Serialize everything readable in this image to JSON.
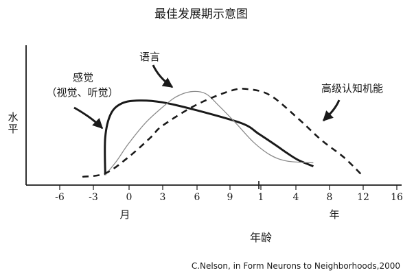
{
  "chart_data": {
    "type": "line",
    "title": "最佳发展期示意图",
    "ylabel": "水平",
    "xlabel": "年龄",
    "x_unit_months": "月",
    "x_unit_years": "年",
    "ticks_months": [
      "-6",
      "-3",
      "0",
      "3",
      "6",
      "9"
    ],
    "ticks_years": [
      "1",
      "4",
      "8",
      "12",
      "16"
    ],
    "series": [
      {
        "name": "感觉（视觉、听觉）",
        "label_line1": "感觉",
        "label_line2": "（视觉、听觉）",
        "style": "solid-thick",
        "color": "#1a1a1a",
        "points": [
          [
            -2,
            0.02
          ],
          [
            -2,
            0.45
          ],
          [
            -1.5,
            0.72
          ],
          [
            -0.5,
            0.84
          ],
          [
            1,
            0.87
          ],
          [
            3,
            0.85
          ],
          [
            6,
            0.76
          ],
          [
            10,
            0.61
          ],
          [
            11.5,
            0.49
          ],
          [
            13,
            0.36
          ],
          [
            14,
            0.27
          ],
          [
            15,
            0.19
          ],
          [
            16.3,
            0.12
          ]
        ]
      },
      {
        "name": "语言",
        "label_line1": "语言",
        "style": "solid-thin",
        "color": "#8a8a8a",
        "points": [
          [
            -2,
            0.02
          ],
          [
            -1,
            0.18
          ],
          [
            0,
            0.37
          ],
          [
            1.5,
            0.61
          ],
          [
            3,
            0.79
          ],
          [
            4.2,
            0.91
          ],
          [
            5.5,
            0.97
          ],
          [
            6.8,
            0.95
          ],
          [
            8,
            0.81
          ],
          [
            9.5,
            0.61
          ],
          [
            11,
            0.4
          ],
          [
            12.5,
            0.25
          ],
          [
            14,
            0.18
          ],
          [
            16.3,
            0.16
          ]
        ]
      },
      {
        "name": "高级认知机能",
        "label_line1": "高级认知机能",
        "style": "dashed",
        "color": "#1a1a1a",
        "points": [
          [
            -4,
            0.0
          ],
          [
            -2,
            0.04
          ],
          [
            0,
            0.22
          ],
          [
            2,
            0.45
          ],
          [
            3,
            0.58
          ],
          [
            6,
            0.82
          ],
          [
            9,
            0.98
          ],
          [
            10.5,
            1.0
          ],
          [
            12.5,
            0.93
          ],
          [
            15,
            0.66
          ],
          [
            17,
            0.42
          ],
          [
            19,
            0.22
          ],
          [
            20.5,
            0.03
          ]
        ]
      }
    ],
    "annotations": [
      "C.Nelson, in Form Neurons to Neighborhoods,2000"
    ]
  }
}
